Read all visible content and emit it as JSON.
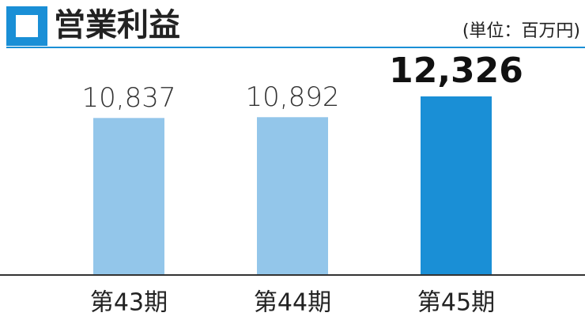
{
  "chart_data": {
    "type": "bar",
    "title": "営業利益",
    "unit": "(単位：百万円)",
    "categories": [
      "第43期",
      "第44期",
      "第45期"
    ],
    "values": [
      10837,
      10892,
      12326
    ],
    "value_labels": [
      "10,837",
      "10,892",
      "12,326"
    ],
    "colors": [
      "#93c6ea",
      "#93c6ea",
      "#1a8fd6"
    ]
  }
}
